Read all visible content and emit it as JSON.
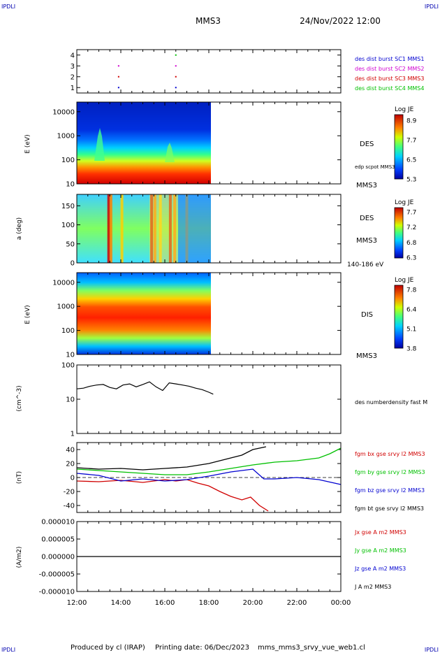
{
  "header": {
    "corner_label": "IPDLI",
    "spacecraft": "MMS3",
    "datetime": "24/Nov/2022 12:00"
  },
  "footer": {
    "produced_by": "Produced by cl (IRAP)",
    "printing_date": "Printing date: 06/Dec/2023",
    "filename": "mms_mms3_srvy_vue_web1.cl"
  },
  "colors": {
    "mms1": "#0000d0",
    "mms2": "#d000d0",
    "mms3": "#d00000",
    "mms4": "#00c000",
    "black": "#000000"
  },
  "time_axis": {
    "start_hour": 12,
    "end_hour": 24,
    "data_end_hour": 18.2,
    "tick_labels": [
      "12:00",
      "14:00",
      "16:00",
      "18:00",
      "20:00",
      "22:00",
      "00:00"
    ]
  },
  "chart_data": [
    {
      "id": "burst",
      "type": "scatter",
      "yticks": [
        "1",
        "2",
        "3",
        "4"
      ],
      "ylim": [
        0.5,
        4.5
      ],
      "legend": [
        {
          "label": "des dist burst SC1 MMS1",
          "color": "#0000d0"
        },
        {
          "label": "des dist burst SC2 MMS2",
          "color": "#d000d0"
        },
        {
          "label": "des dist burst SC3 MMS3",
          "color": "#d00000"
        },
        {
          "label": "des dist burst SC4 MMS4",
          "color": "#00c000"
        }
      ],
      "points": [
        {
          "x": 13.9,
          "y": 3,
          "color": "#d000d0"
        },
        {
          "x": 13.9,
          "y": 2,
          "color": "#d00000"
        },
        {
          "x": 13.9,
          "y": 1,
          "color": "#0000d0"
        },
        {
          "x": 16.5,
          "y": 4,
          "color": "#00c000"
        },
        {
          "x": 16.5,
          "y": 3,
          "color": "#d000d0"
        },
        {
          "x": 16.5,
          "y": 2,
          "color": "#d00000"
        },
        {
          "x": 16.5,
          "y": 1,
          "color": "#0000d0"
        }
      ]
    },
    {
      "id": "des_energy",
      "type": "heatmap",
      "ylabel": "E (eV)",
      "yticks": [
        "10",
        "100",
        "1000",
        "10000"
      ],
      "instrument": "DES",
      "note": "edp scpot MMS3",
      "spacecraft": "MMS3",
      "colorbar": {
        "title": "Log JE",
        "ticks": [
          "8.9",
          "7.7",
          "6.5",
          "5.3"
        ]
      }
    },
    {
      "id": "des_pitch",
      "type": "heatmap",
      "ylabel": "a (deg)",
      "yticks": [
        "0",
        "50",
        "100",
        "150"
      ],
      "instrument": "DES",
      "spacecraft": "MMS3",
      "energy_range": "140-186 eV",
      "colorbar": {
        "title": "Log JE",
        "ticks": [
          "7.7",
          "7.2",
          "6.8",
          "6.3"
        ]
      },
      "bright_bands": [
        13.45,
        13.55,
        14.05,
        15.4,
        15.55,
        15.8,
        16.25,
        16.45,
        17.0
      ]
    },
    {
      "id": "dis_energy",
      "type": "heatmap",
      "ylabel": "E (eV)",
      "yticks": [
        "10",
        "100",
        "1000",
        "10000"
      ],
      "instrument": "DIS",
      "spacecraft": "MMS3",
      "colorbar": {
        "title": "Log JE",
        "ticks": [
          "7.8",
          "6.4",
          "5.1",
          "3.8"
        ]
      }
    },
    {
      "id": "density",
      "type": "line",
      "ylabel": "(cm^-3)",
      "yticks": [
        "1",
        "10",
        "100"
      ],
      "ylim": [
        1,
        100
      ],
      "scale": "log",
      "legend": [
        {
          "label": "des numberdensity fast M",
          "color": "#000000"
        }
      ],
      "series": [
        {
          "name": "des numberdensity fast M",
          "color": "#000000",
          "x": [
            12.0,
            12.3,
            12.6,
            12.9,
            13.2,
            13.5,
            13.8,
            14.1,
            14.4,
            14.7,
            15.0,
            15.3,
            15.6,
            15.9,
            16.2,
            16.5,
            16.8,
            17.1,
            17.4,
            17.7,
            18.0,
            18.2
          ],
          "y": [
            20,
            21,
            24,
            26,
            27,
            22,
            20,
            26,
            28,
            23,
            27,
            32,
            23,
            18,
            30,
            28,
            26,
            24,
            21,
            19,
            16,
            14
          ]
        }
      ]
    },
    {
      "id": "fgm",
      "type": "line",
      "ylabel": "(nT)",
      "yticks": [
        "-40",
        "-20",
        "0",
        "20",
        "40"
      ],
      "ylim": [
        -50,
        50
      ],
      "legend": [
        {
          "label": "fgm bx gse srvy l2 MMS3",
          "color": "#d00000"
        },
        {
          "label": "fgm by gse srvy l2 MMS3",
          "color": "#00c000"
        },
        {
          "label": "fgm bz gse srvy l2 MMS3",
          "color": "#0000d0"
        },
        {
          "label": "fgm bt gse srvy l2 MMS3",
          "color": "#000000"
        }
      ],
      "series": [
        {
          "name": "fgm bx gse srvy l2 MMS3",
          "color": "#d00000",
          "x": [
            12.0,
            13.0,
            14.0,
            15.0,
            16.0,
            16.5,
            17.0,
            17.5,
            18.0,
            18.5,
            19.0,
            19.5,
            19.9,
            20.3,
            20.7
          ],
          "y": [
            -5,
            -6,
            -4,
            -7,
            -3,
            -5,
            -3,
            -8,
            -12,
            -20,
            -27,
            -32,
            -28,
            -40,
            -48
          ]
        },
        {
          "name": "fgm by gse srvy l2 MMS3",
          "color": "#00c000",
          "x": [
            12.0,
            13.0,
            14.0,
            15.0,
            16.0,
            17.0,
            18.0,
            19.0,
            20.0,
            21.0,
            22.0,
            23.0,
            23.5,
            24.0
          ],
          "y": [
            12,
            10,
            8,
            6,
            4,
            4,
            8,
            13,
            18,
            22,
            24,
            28,
            34,
            42
          ]
        },
        {
          "name": "fgm bz gse srvy l2 MMS3",
          "color": "#0000d0",
          "x": [
            12.0,
            13.0,
            14.0,
            15.0,
            16.0,
            17.0,
            18.0,
            19.0,
            20.0,
            20.5,
            21.0,
            22.0,
            23.0,
            24.0
          ],
          "y": [
            6,
            3,
            -5,
            -2,
            -5,
            -3,
            2,
            8,
            12,
            -2,
            -2,
            0,
            -3,
            -10
          ]
        },
        {
          "name": "fgm bt gse srvy l2 MMS3",
          "color": "#000000",
          "x": [
            12.0,
            13.0,
            14.0,
            15.0,
            16.0,
            17.0,
            18.0,
            19.0,
            19.5,
            20.0,
            20.3,
            20.6
          ],
          "y": [
            14,
            12,
            13,
            11,
            13,
            15,
            20,
            28,
            32,
            40,
            42,
            44
          ]
        }
      ]
    },
    {
      "id": "curlometer",
      "type": "line",
      "ylabel": "(A/m2)",
      "yticks": [
        "-0.000010",
        "-0.000005",
        "0.000000",
        "0.000005",
        "0.000010"
      ],
      "ylim": [
        -1e-05,
        1e-05
      ],
      "legend": [
        {
          "label": "Jx gse A m2 MMS3",
          "color": "#d00000"
        },
        {
          "label": "Jy gse A m2 MMS3",
          "color": "#00c000"
        },
        {
          "label": "Jz gse A m2 MMS3",
          "color": "#0000d0"
        },
        {
          "label": "J A m2 MMS3",
          "color": "#000000"
        }
      ],
      "series": [
        {
          "name": "J A m2 MMS3",
          "color": "#000000",
          "x": [
            12.0,
            24.0
          ],
          "y": [
            0,
            0
          ]
        }
      ]
    }
  ]
}
